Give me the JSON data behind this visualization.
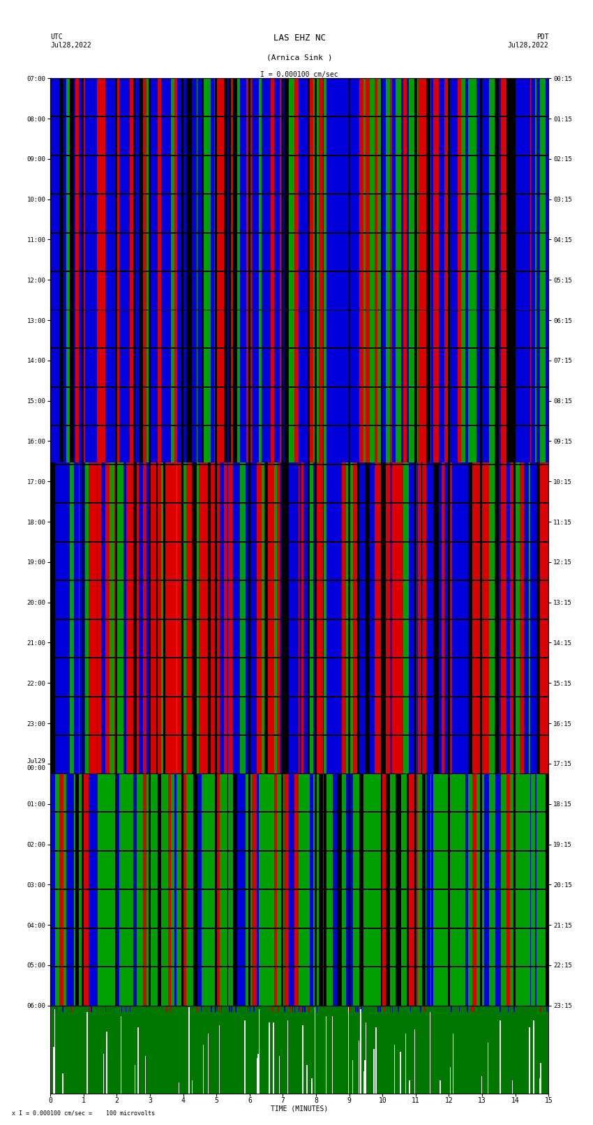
{
  "title_line1": "LAS EHZ NC",
  "title_line2": "(Arnica Sink )",
  "scale_text": "I = 0.000100 cm/sec",
  "left_label": "UTC\nJul28,2022",
  "right_label": "PDT\nJul28,2022",
  "bottom_label": "x I = 0.000100 cm/sec =    100 microvolts",
  "time_axis_label": "TIME (MINUTES)",
  "left_yticks": [
    "07:00",
    "08:00",
    "09:00",
    "10:00",
    "11:00",
    "12:00",
    "13:00",
    "14:00",
    "15:00",
    "16:00",
    "17:00",
    "18:00",
    "19:00",
    "20:00",
    "21:00",
    "22:00",
    "23:00",
    "Jul29\n00:00",
    "01:00",
    "02:00",
    "03:00",
    "04:00",
    "05:00",
    "06:00"
  ],
  "right_yticks": [
    "00:15",
    "01:15",
    "02:15",
    "03:15",
    "04:15",
    "05:15",
    "06:15",
    "07:15",
    "08:15",
    "09:15",
    "10:15",
    "11:15",
    "12:15",
    "13:15",
    "14:15",
    "15:15",
    "16:15",
    "17:15",
    "18:15",
    "19:15",
    "20:15",
    "21:15",
    "22:15",
    "23:15"
  ],
  "bg_color": "#ffffff",
  "fig_width": 8.5,
  "fig_height": 16.13,
  "dpi": 100,
  "n_hours": 24,
  "cols": 490,
  "rows": 1380
}
